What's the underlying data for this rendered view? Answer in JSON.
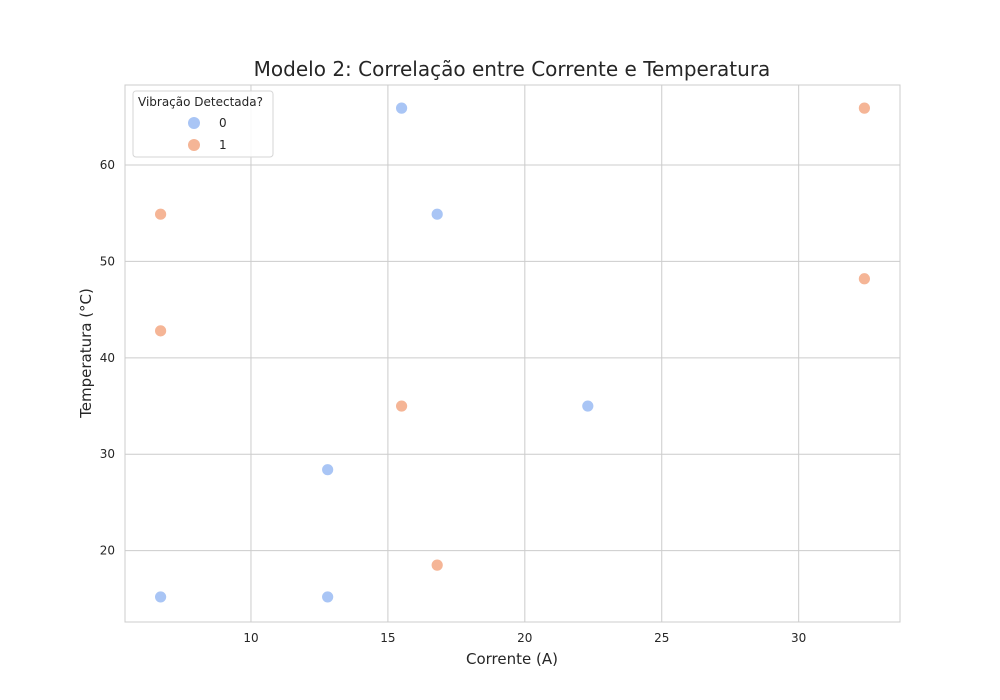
{
  "chart_data": {
    "type": "scatter",
    "title": "Modelo 2: Correlação entre Corrente e Temperatura",
    "xlabel": "Corrente (A)",
    "ylabel": "Temperatura (°C)",
    "xlim": [
      5.4,
      33.7
    ],
    "ylim": [
      12.6,
      68.3
    ],
    "xticks": [
      10,
      15,
      20,
      25,
      30
    ],
    "yticks": [
      20,
      30,
      40,
      50,
      60
    ],
    "grid": true,
    "legend": {
      "title": "Vibração Detectada?",
      "position": "top-left"
    },
    "series": [
      {
        "name": "0",
        "color": "#a9c5f5",
        "points": [
          {
            "x": 6.7,
            "y": 15.2
          },
          {
            "x": 12.8,
            "y": 15.2
          },
          {
            "x": 12.8,
            "y": 28.4
          },
          {
            "x": 15.5,
            "y": 65.9
          },
          {
            "x": 16.8,
            "y": 54.9
          },
          {
            "x": 22.3,
            "y": 35.0
          }
        ]
      },
      {
        "name": "1",
        "color": "#f5b596",
        "points": [
          {
            "x": 6.7,
            "y": 54.9
          },
          {
            "x": 6.7,
            "y": 42.8
          },
          {
            "x": 15.5,
            "y": 35.0
          },
          {
            "x": 16.8,
            "y": 18.5
          },
          {
            "x": 32.4,
            "y": 65.9
          },
          {
            "x": 32.4,
            "y": 48.2
          }
        ]
      }
    ]
  }
}
